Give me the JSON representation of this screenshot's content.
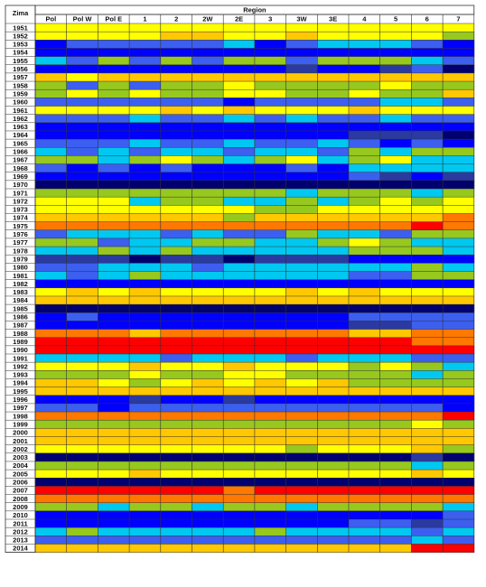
{
  "chart_data": {
    "type": "heatmap",
    "row_header": "Zima",
    "column_group_header": "Region",
    "columns": [
      "Pol",
      "Pol W",
      "Pol E",
      "1",
      "2",
      "2W",
      "2E",
      "3",
      "3W",
      "3E",
      "4",
      "5",
      "6",
      "7"
    ],
    "rows": [
      "1951",
      "1952",
      "1953",
      "1954",
      "1955",
      "1956",
      "1957",
      "1958",
      "1959",
      "1960",
      "1961",
      "1962",
      "1963",
      "1964",
      "1965",
      "1966",
      "1967",
      "1968",
      "1969",
      "1970",
      "1971",
      "1972",
      "1973",
      "1974",
      "1975",
      "1976",
      "1977",
      "1978",
      "1979",
      "1980",
      "1981",
      "1982",
      "1983",
      "1984",
      "1985",
      "1986",
      "1987",
      "1988",
      "1989",
      "1990",
      "1991",
      "1992",
      "1993",
      "1994",
      "1995",
      "1996",
      "1997",
      "1998",
      "1999",
      "2000",
      "2001",
      "2002",
      "2003",
      "2004",
      "2005",
      "2006",
      "2007",
      "2008",
      "2009",
      "2010",
      "2011",
      "2012",
      "2013",
      "2014"
    ],
    "legend": [
      {
        "code": "N",
        "color": "#00006e"
      },
      {
        "code": "D",
        "color": "#2a3aa0"
      },
      {
        "code": "B",
        "color": "#0000ff"
      },
      {
        "code": "R",
        "color": "#3c5ff0"
      },
      {
        "code": "C",
        "color": "#00c8f0"
      },
      {
        "code": "G",
        "color": "#96c81e"
      },
      {
        "code": "Y",
        "color": "#ffff00"
      },
      {
        "code": "O",
        "color": "#ffc800"
      },
      {
        "code": "A",
        "color": "#ff7800"
      },
      {
        "code": "F",
        "color": "#ff0000"
      }
    ],
    "cells": [
      [
        "Y",
        "Y",
        "Y",
        "Y",
        "Y",
        "Y",
        "Y",
        "Y",
        "Y",
        "Y",
        "Y",
        "Y",
        "Y",
        "Y"
      ],
      [
        "Y",
        "Y",
        "Y",
        "Y",
        "O",
        "O",
        "Y",
        "Y",
        "O",
        "Y",
        "Y",
        "Y",
        "Y",
        "G"
      ],
      [
        "B",
        "R",
        "R",
        "R",
        "R",
        "R",
        "C",
        "B",
        "R",
        "C",
        "C",
        "C",
        "R",
        "B"
      ],
      [
        "B",
        "B",
        "B",
        "B",
        "B",
        "B",
        "B",
        "B",
        "B",
        "B",
        "B",
        "B",
        "B",
        "B"
      ],
      [
        "C",
        "R",
        "G",
        "R",
        "G",
        "R",
        "G",
        "G",
        "R",
        "G",
        "G",
        "G",
        "C",
        "R"
      ],
      [
        "B",
        "B",
        "B",
        "B",
        "B",
        "B",
        "B",
        "B",
        "D",
        "B",
        "B",
        "D",
        "R",
        "N"
      ],
      [
        "O",
        "Y",
        "O",
        "O",
        "O",
        "O",
        "O",
        "O",
        "O",
        "O",
        "O",
        "O",
        "O",
        "O"
      ],
      [
        "G",
        "R",
        "G",
        "R",
        "G",
        "G",
        "Y",
        "G",
        "G",
        "G",
        "G",
        "Y",
        "G",
        "G"
      ],
      [
        "G",
        "Y",
        "G",
        "Y",
        "G",
        "G",
        "Y",
        "Y",
        "G",
        "G",
        "Y",
        "G",
        "G",
        "O"
      ],
      [
        "R",
        "R",
        "R",
        "R",
        "R",
        "R",
        "B",
        "R",
        "R",
        "R",
        "R",
        "C",
        "C",
        "R"
      ],
      [
        "Y",
        "Y",
        "Y",
        "Y",
        "O",
        "Y",
        "O",
        "Y",
        "Y",
        "Y",
        "O",
        "Y",
        "Y",
        "Y"
      ],
      [
        "R",
        "R",
        "R",
        "C",
        "R",
        "R",
        "C",
        "R",
        "C",
        "R",
        "R",
        "C",
        "R",
        "R"
      ],
      [
        "B",
        "B",
        "B",
        "B",
        "B",
        "B",
        "B",
        "B",
        "B",
        "B",
        "B",
        "B",
        "B",
        "B"
      ],
      [
        "B",
        "B",
        "B",
        "B",
        "B",
        "B",
        "B",
        "B",
        "B",
        "B",
        "D",
        "D",
        "D",
        "N"
      ],
      [
        "R",
        "R",
        "R",
        "C",
        "R",
        "R",
        "C",
        "R",
        "R",
        "C",
        "R",
        "B",
        "R",
        "B"
      ],
      [
        "C",
        "R",
        "C",
        "R",
        "C",
        "C",
        "R",
        "C",
        "C",
        "R",
        "G",
        "C",
        "G",
        "G"
      ],
      [
        "G",
        "G",
        "C",
        "G",
        "Y",
        "G",
        "C",
        "G",
        "Y",
        "C",
        "G",
        "Y",
        "C",
        "C"
      ],
      [
        "R",
        "B",
        "R",
        "B",
        "R",
        "B",
        "B",
        "B",
        "R",
        "B",
        "C",
        "C",
        "C",
        "C"
      ],
      [
        "B",
        "B",
        "B",
        "B",
        "B",
        "B",
        "B",
        "B",
        "B",
        "B",
        "R",
        "D",
        "B",
        "D"
      ],
      [
        "N",
        "N",
        "N",
        "N",
        "N",
        "N",
        "N",
        "N",
        "N",
        "N",
        "N",
        "N",
        "N",
        "N"
      ],
      [
        "G",
        "G",
        "G",
        "G",
        "G",
        "G",
        "G",
        "G",
        "C",
        "G",
        "G",
        "G",
        "C",
        "G"
      ],
      [
        "Y",
        "Y",
        "Y",
        "C",
        "G",
        "G",
        "C",
        "C",
        "G",
        "C",
        "G",
        "Y",
        "G",
        "Y"
      ],
      [
        "Y",
        "Y",
        "Y",
        "Y",
        "Y",
        "Y",
        "Y",
        "G",
        "G",
        "Y",
        "Y",
        "Y",
        "Y",
        "Y"
      ],
      [
        "O",
        "O",
        "O",
        "O",
        "O",
        "O",
        "G",
        "O",
        "O",
        "O",
        "O",
        "O",
        "O",
        "A"
      ],
      [
        "A",
        "A",
        "A",
        "A",
        "A",
        "A",
        "A",
        "A",
        "A",
        "A",
        "A",
        "A",
        "F",
        "A"
      ],
      [
        "R",
        "C",
        "C",
        "C",
        "R",
        "C",
        "R",
        "R",
        "G",
        "C",
        "C",
        "R",
        "G",
        "G"
      ],
      [
        "G",
        "G",
        "R",
        "C",
        "C",
        "G",
        "G",
        "C",
        "C",
        "G",
        "Y",
        "G",
        "C",
        "C"
      ],
      [
        "C",
        "C",
        "G",
        "C",
        "G",
        "C",
        "C",
        "C",
        "C",
        "C",
        "G",
        "G",
        "G",
        "C"
      ],
      [
        "D",
        "D",
        "D",
        "N",
        "D",
        "D",
        "N",
        "D",
        "D",
        "D",
        "B",
        "B",
        "B",
        "B"
      ],
      [
        "R",
        "R",
        "C",
        "C",
        "C",
        "R",
        "C",
        "C",
        "C",
        "C",
        "C",
        "C",
        "G",
        "C"
      ],
      [
        "C",
        "R",
        "C",
        "G",
        "C",
        "C",
        "C",
        "C",
        "C",
        "C",
        "R",
        "R",
        "G",
        "G"
      ],
      [
        "B",
        "B",
        "B",
        "B",
        "B",
        "B",
        "B",
        "B",
        "B",
        "B",
        "B",
        "B",
        "B",
        "B"
      ],
      [
        "Y",
        "O",
        "Y",
        "O",
        "Y",
        "Y",
        "Y",
        "Y",
        "O",
        "Y",
        "O",
        "Y",
        "Y",
        "Y"
      ],
      [
        "O",
        "O",
        "O",
        "O",
        "O",
        "O",
        "O",
        "O",
        "O",
        "O",
        "O",
        "O",
        "O",
        "O"
      ],
      [
        "N",
        "N",
        "N",
        "N",
        "N",
        "N",
        "N",
        "N",
        "N",
        "N",
        "N",
        "N",
        "N",
        "N"
      ],
      [
        "B",
        "R",
        "B",
        "B",
        "B",
        "B",
        "B",
        "B",
        "B",
        "B",
        "R",
        "R",
        "R",
        "R"
      ],
      [
        "B",
        "B",
        "B",
        "B",
        "B",
        "B",
        "B",
        "B",
        "B",
        "B",
        "D",
        "D",
        "R",
        "R"
      ],
      [
        "A",
        "A",
        "A",
        "O",
        "A",
        "A",
        "A",
        "A",
        "A",
        "A",
        "O",
        "O",
        "A",
        "A"
      ],
      [
        "F",
        "F",
        "F",
        "F",
        "F",
        "F",
        "F",
        "F",
        "F",
        "F",
        "F",
        "F",
        "A",
        "A"
      ],
      [
        "F",
        "F",
        "F",
        "F",
        "F",
        "F",
        "F",
        "F",
        "F",
        "F",
        "F",
        "F",
        "F",
        "F"
      ],
      [
        "C",
        "C",
        "C",
        "C",
        "R",
        "C",
        "C",
        "C",
        "R",
        "C",
        "C",
        "C",
        "R",
        "R"
      ],
      [
        "Y",
        "Y",
        "Y",
        "O",
        "Y",
        "Y",
        "O",
        "Y",
        "Y",
        "Y",
        "G",
        "Y",
        "G",
        "C"
      ],
      [
        "G",
        "G",
        "G",
        "Y",
        "G",
        "G",
        "Y",
        "Y",
        "G",
        "G",
        "G",
        "G",
        "C",
        "G"
      ],
      [
        "O",
        "O",
        "Y",
        "G",
        "Y",
        "O",
        "Y",
        "O",
        "Y",
        "O",
        "G",
        "G",
        "G",
        "G"
      ],
      [
        "O",
        "O",
        "O",
        "O",
        "O",
        "O",
        "O",
        "O",
        "O",
        "O",
        "O",
        "O",
        "O",
        "O"
      ],
      [
        "B",
        "B",
        "B",
        "D",
        "B",
        "B",
        "D",
        "B",
        "B",
        "B",
        "B",
        "B",
        "B",
        "B"
      ],
      [
        "R",
        "R",
        "B",
        "R",
        "R",
        "R",
        "R",
        "R",
        "R",
        "R",
        "R",
        "R",
        "R",
        "B"
      ],
      [
        "A",
        "A",
        "A",
        "A",
        "A",
        "A",
        "A",
        "A",
        "A",
        "A",
        "A",
        "A",
        "A",
        "F"
      ],
      [
        "G",
        "G",
        "G",
        "G",
        "G",
        "G",
        "G",
        "G",
        "G",
        "G",
        "G",
        "G",
        "Y",
        "G"
      ],
      [
        "O",
        "O",
        "O",
        "O",
        "O",
        "O",
        "O",
        "O",
        "O",
        "O",
        "O",
        "O",
        "O",
        "O"
      ],
      [
        "O",
        "O",
        "O",
        "O",
        "O",
        "O",
        "O",
        "O",
        "O",
        "O",
        "O",
        "O",
        "O",
        "O"
      ],
      [
        "Y",
        "Y",
        "Y",
        "Y",
        "Y",
        "Y",
        "Y",
        "Y",
        "G",
        "Y",
        "Y",
        "Y",
        "O",
        "G"
      ],
      [
        "N",
        "N",
        "N",
        "N",
        "N",
        "N",
        "N",
        "N",
        "N",
        "N",
        "N",
        "N",
        "D",
        "N"
      ],
      [
        "G",
        "G",
        "G",
        "G",
        "G",
        "G",
        "G",
        "G",
        "G",
        "G",
        "G",
        "G",
        "C",
        "G"
      ],
      [
        "Y",
        "Y",
        "Y",
        "O",
        "Y",
        "Y",
        "Y",
        "Y",
        "Y",
        "Y",
        "Y",
        "Y",
        "O",
        "Y"
      ],
      [
        "N",
        "N",
        "N",
        "N",
        "N",
        "N",
        "N",
        "N",
        "N",
        "N",
        "N",
        "N",
        "N",
        "N"
      ],
      [
        "F",
        "F",
        "F",
        "F",
        "F",
        "F",
        "A",
        "F",
        "F",
        "F",
        "F",
        "F",
        "F",
        "F"
      ],
      [
        "A",
        "A",
        "A",
        "A",
        "A",
        "A",
        "A",
        "A",
        "A",
        "A",
        "A",
        "A",
        "A",
        "A"
      ],
      [
        "G",
        "G",
        "C",
        "G",
        "G",
        "C",
        "G",
        "G",
        "C",
        "G",
        "G",
        "G",
        "G",
        "C"
      ],
      [
        "B",
        "B",
        "B",
        "B",
        "B",
        "B",
        "B",
        "B",
        "B",
        "B",
        "B",
        "B",
        "B",
        "R"
      ],
      [
        "B",
        "B",
        "B",
        "B",
        "B",
        "B",
        "B",
        "B",
        "B",
        "B",
        "R",
        "R",
        "D",
        "R"
      ],
      [
        "C",
        "G",
        "C",
        "C",
        "C",
        "C",
        "C",
        "G",
        "C",
        "C",
        "C",
        "C",
        "R",
        "C"
      ],
      [
        "R",
        "R",
        "R",
        "R",
        "R",
        "R",
        "R",
        "R",
        "R",
        "R",
        "R",
        "R",
        "C",
        "R"
      ],
      [
        "O",
        "O",
        "O",
        "O",
        "O",
        "O",
        "O",
        "O",
        "O",
        "O",
        "O",
        "O",
        "F",
        "F"
      ]
    ]
  }
}
